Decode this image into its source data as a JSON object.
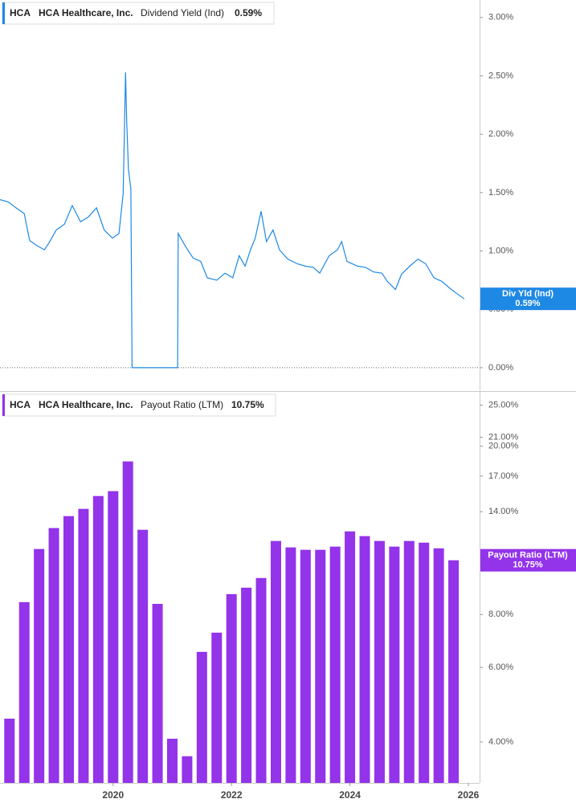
{
  "chart_data": [
    {
      "type": "line",
      "legend": {
        "ticker": "HCA",
        "company": "HCA Healthcare, Inc.",
        "value": "0.59%"
      },
      "tag": {
        "name": "Div Yld (Ind)",
        "value": "0.59%"
      },
      "series": [
        {
          "name": "Dividend Yield (Ind)",
          "color": "#1e88e5",
          "x": [
            2018.09,
            2018.23,
            2018.36,
            2018.5,
            2018.59,
            2018.7,
            2018.84,
            2018.93,
            2019.04,
            2019.18,
            2019.31,
            2019.45,
            2019.58,
            2019.72,
            2019.85,
            2019.99,
            2020.1,
            2020.17,
            2020.21,
            2020.23,
            2020.26,
            2020.3,
            2020.32,
            2021.09,
            2021.1,
            2021.21,
            2021.35,
            2021.48,
            2021.59,
            2021.75,
            2021.89,
            2022.02,
            2022.13,
            2022.23,
            2022.32,
            2022.4,
            2022.5,
            2022.59,
            2022.7,
            2022.81,
            2022.95,
            2023.11,
            2023.25,
            2023.38,
            2023.49,
            2023.65,
            2023.79,
            2023.86,
            2023.95,
            2024.13,
            2024.26,
            2024.4,
            2024.54,
            2024.63,
            2024.77,
            2024.87,
            2025.01,
            2025.15,
            2025.28,
            2025.42,
            2025.55,
            2025.69,
            2025.82,
            2025.93
          ],
          "values": [
            1.44,
            1.42,
            1.37,
            1.32,
            1.09,
            1.05,
            1.01,
            1.08,
            1.18,
            1.23,
            1.39,
            1.25,
            1.29,
            1.37,
            1.18,
            1.11,
            1.15,
            1.49,
            2.53,
            2.11,
            1.7,
            1.53,
            0,
            0,
            1.15,
            1.05,
            0.94,
            0.91,
            0.77,
            0.75,
            0.81,
            0.77,
            0.96,
            0.87,
            1.01,
            1.11,
            1.34,
            1.08,
            1.18,
            1.01,
            0.93,
            0.89,
            0.87,
            0.86,
            0.81,
            0.96,
            1.01,
            1.08,
            0.91,
            0.87,
            0.86,
            0.82,
            0.81,
            0.74,
            0.67,
            0.8,
            0.87,
            0.93,
            0.89,
            0.77,
            0.74,
            0.68,
            0.63,
            0.59
          ]
        }
      ],
      "xlim": [
        2018.09,
        2026.19
      ],
      "ylim": [
        -0.2,
        3.15
      ],
      "yticks": [
        {
          "value": 0,
          "label": "0.00%"
        },
        {
          "value": 0.5,
          "label": "0.50%"
        },
        {
          "value": 1,
          "label": "1.00%"
        },
        {
          "value": 1.5,
          "label": "1.50%"
        },
        {
          "value": 2,
          "label": "2.00%"
        },
        {
          "value": 2.5,
          "label": "2.50%"
        },
        {
          "value": 3,
          "label": "3.00%"
        }
      ]
    },
    {
      "type": "bar",
      "legend": {
        "ticker": "HCA",
        "company": "HCA Healthcare, Inc.",
        "value": "10.75%"
      },
      "tag": {
        "name": "Payout Ratio (LTM)",
        "value": "10.75%"
      },
      "series": [
        {
          "name": "Payout Ratio (LTM)",
          "color": "#9333ea",
          "x": [
            2018.25,
            2018.5,
            2018.75,
            2019,
            2019.25,
            2019.5,
            2019.75,
            2020,
            2020.25,
            2020.5,
            2020.75,
            2021,
            2021.25,
            2021.5,
            2021.75,
            2022,
            2022.25,
            2022.5,
            2022.75,
            2023,
            2023.25,
            2023.5,
            2023.75,
            2024,
            2024.25,
            2024.5,
            2024.75,
            2025,
            2025.25,
            2025.5,
            2025.75
          ],
          "values": [
            4.54,
            8.56,
            11.43,
            12.81,
            13.67,
            14.22,
            15.25,
            15.66,
            18.41,
            12.69,
            8.48,
            4.07,
            3.7,
            6.53,
            7.25,
            8.94,
            9.26,
            9.76,
            11.94,
            11.53,
            11.38,
            11.38,
            11.58,
            12.58,
            12.26,
            11.94,
            11.58,
            11.94,
            11.83,
            11.47,
            10.75
          ]
        }
      ],
      "log_scale": true,
      "xlim": [
        2018.09,
        2026.19
      ],
      "xticks": [
        2020,
        2022,
        2024,
        2026
      ],
      "ylim": [
        3.2,
        27
      ],
      "yticks": [
        {
          "value": 4,
          "label": "4.00%"
        },
        {
          "value": 6,
          "label": "6.00%"
        },
        {
          "value": 8,
          "label": "8.00%"
        },
        {
          "value": 14,
          "label": "14.00%"
        },
        {
          "value": 17,
          "label": "17.00%"
        },
        {
          "value": 20,
          "label": "20.00%"
        },
        {
          "value": 21,
          "label": "21.00%"
        },
        {
          "value": 25,
          "label": "25.00%"
        }
      ]
    }
  ]
}
